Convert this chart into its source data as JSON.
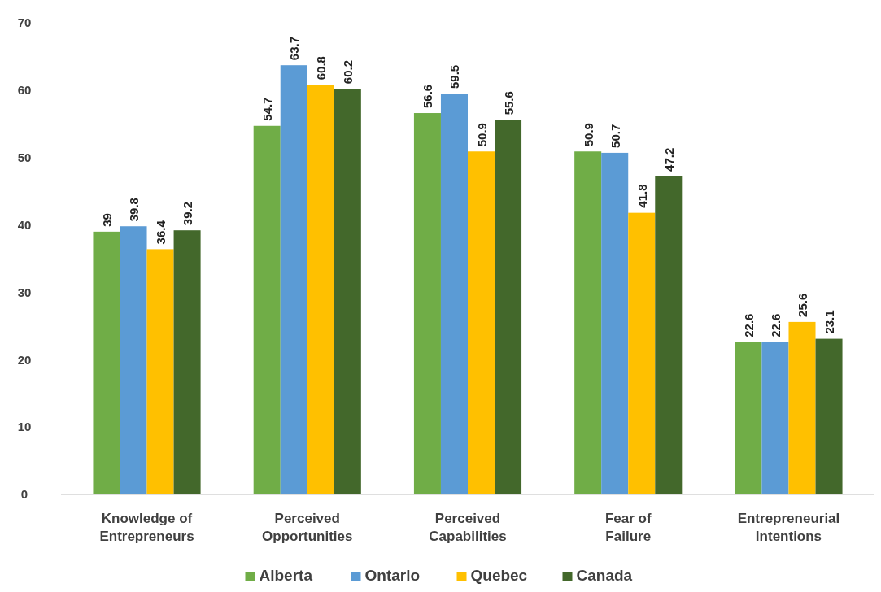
{
  "chart_data": {
    "type": "bar",
    "categories": [
      "Knowledge of Entrepreneurs",
      "Perceived Opportunities",
      "Perceived Capabilities",
      "Fear of Failure",
      "Entrepreneurial Intentions"
    ],
    "series": [
      {
        "name": "Alberta",
        "color": "#70ad47",
        "values": [
          39,
          54.7,
          56.6,
          50.9,
          22.6
        ]
      },
      {
        "name": "Ontario",
        "color": "#5b9bd5",
        "values": [
          39.8,
          63.7,
          59.5,
          50.7,
          22.6
        ]
      },
      {
        "name": "Quebec",
        "color": "#ffc000",
        "values": [
          36.4,
          60.8,
          50.9,
          41.8,
          25.6
        ]
      },
      {
        "name": "Canada",
        "color": "#43682b",
        "values": [
          39.2,
          60.2,
          55.6,
          47.2,
          23.1
        ]
      }
    ],
    "ylim": [
      0,
      70
    ],
    "yticks": [
      0,
      10,
      20,
      30,
      40,
      50,
      60,
      70
    ],
    "grid": false,
    "legend": "bottom",
    "data_labels": true
  }
}
